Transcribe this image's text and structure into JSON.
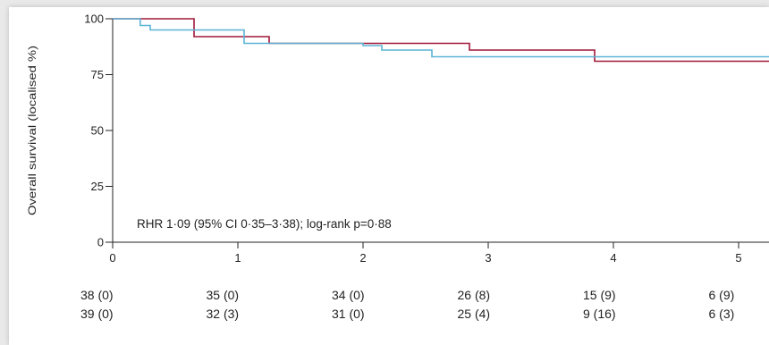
{
  "chart_data": {
    "type": "line",
    "title": "",
    "xlabel": "",
    "ylabel": "Overall survival (localised %)",
    "xlim": [
      0,
      5.25
    ],
    "ylim": [
      0,
      100
    ],
    "x_ticks": [
      "0",
      "1",
      "2",
      "3",
      "4",
      "5"
    ],
    "y_ticks": [
      "0",
      "25",
      "50",
      "75",
      "100"
    ],
    "grid": false,
    "legend": "none",
    "annotation": "RHR 1·09 (95% CI 0·35–3·38); log-rank p=0·88",
    "series": [
      {
        "color": "#a01838",
        "step": true,
        "x": [
          0,
          0.6,
          0.65,
          1.25,
          2.85,
          3.85,
          5.25
        ],
        "y": [
          100,
          100,
          92,
          89,
          86,
          81,
          81
        ]
      },
      {
        "color": "#5bb3d6",
        "step": true,
        "x": [
          0,
          0.22,
          0.3,
          1.0,
          1.05,
          2.0,
          2.15,
          2.55,
          5.25
        ],
        "y": [
          100,
          97,
          95,
          95,
          89,
          88,
          86,
          83,
          83
        ]
      }
    ],
    "risk_table": {
      "x": [
        0,
        1,
        2,
        3,
        4,
        5
      ],
      "rows": [
        [
          "38 (0)",
          "35 (0)",
          "34 (0)",
          "26 (8)",
          "15 (9)",
          "6 (9)"
        ],
        [
          "39 (0)",
          "32 (3)",
          "31 (0)",
          "25 (4)",
          "9 (16)",
          "6 (3)"
        ]
      ]
    }
  }
}
